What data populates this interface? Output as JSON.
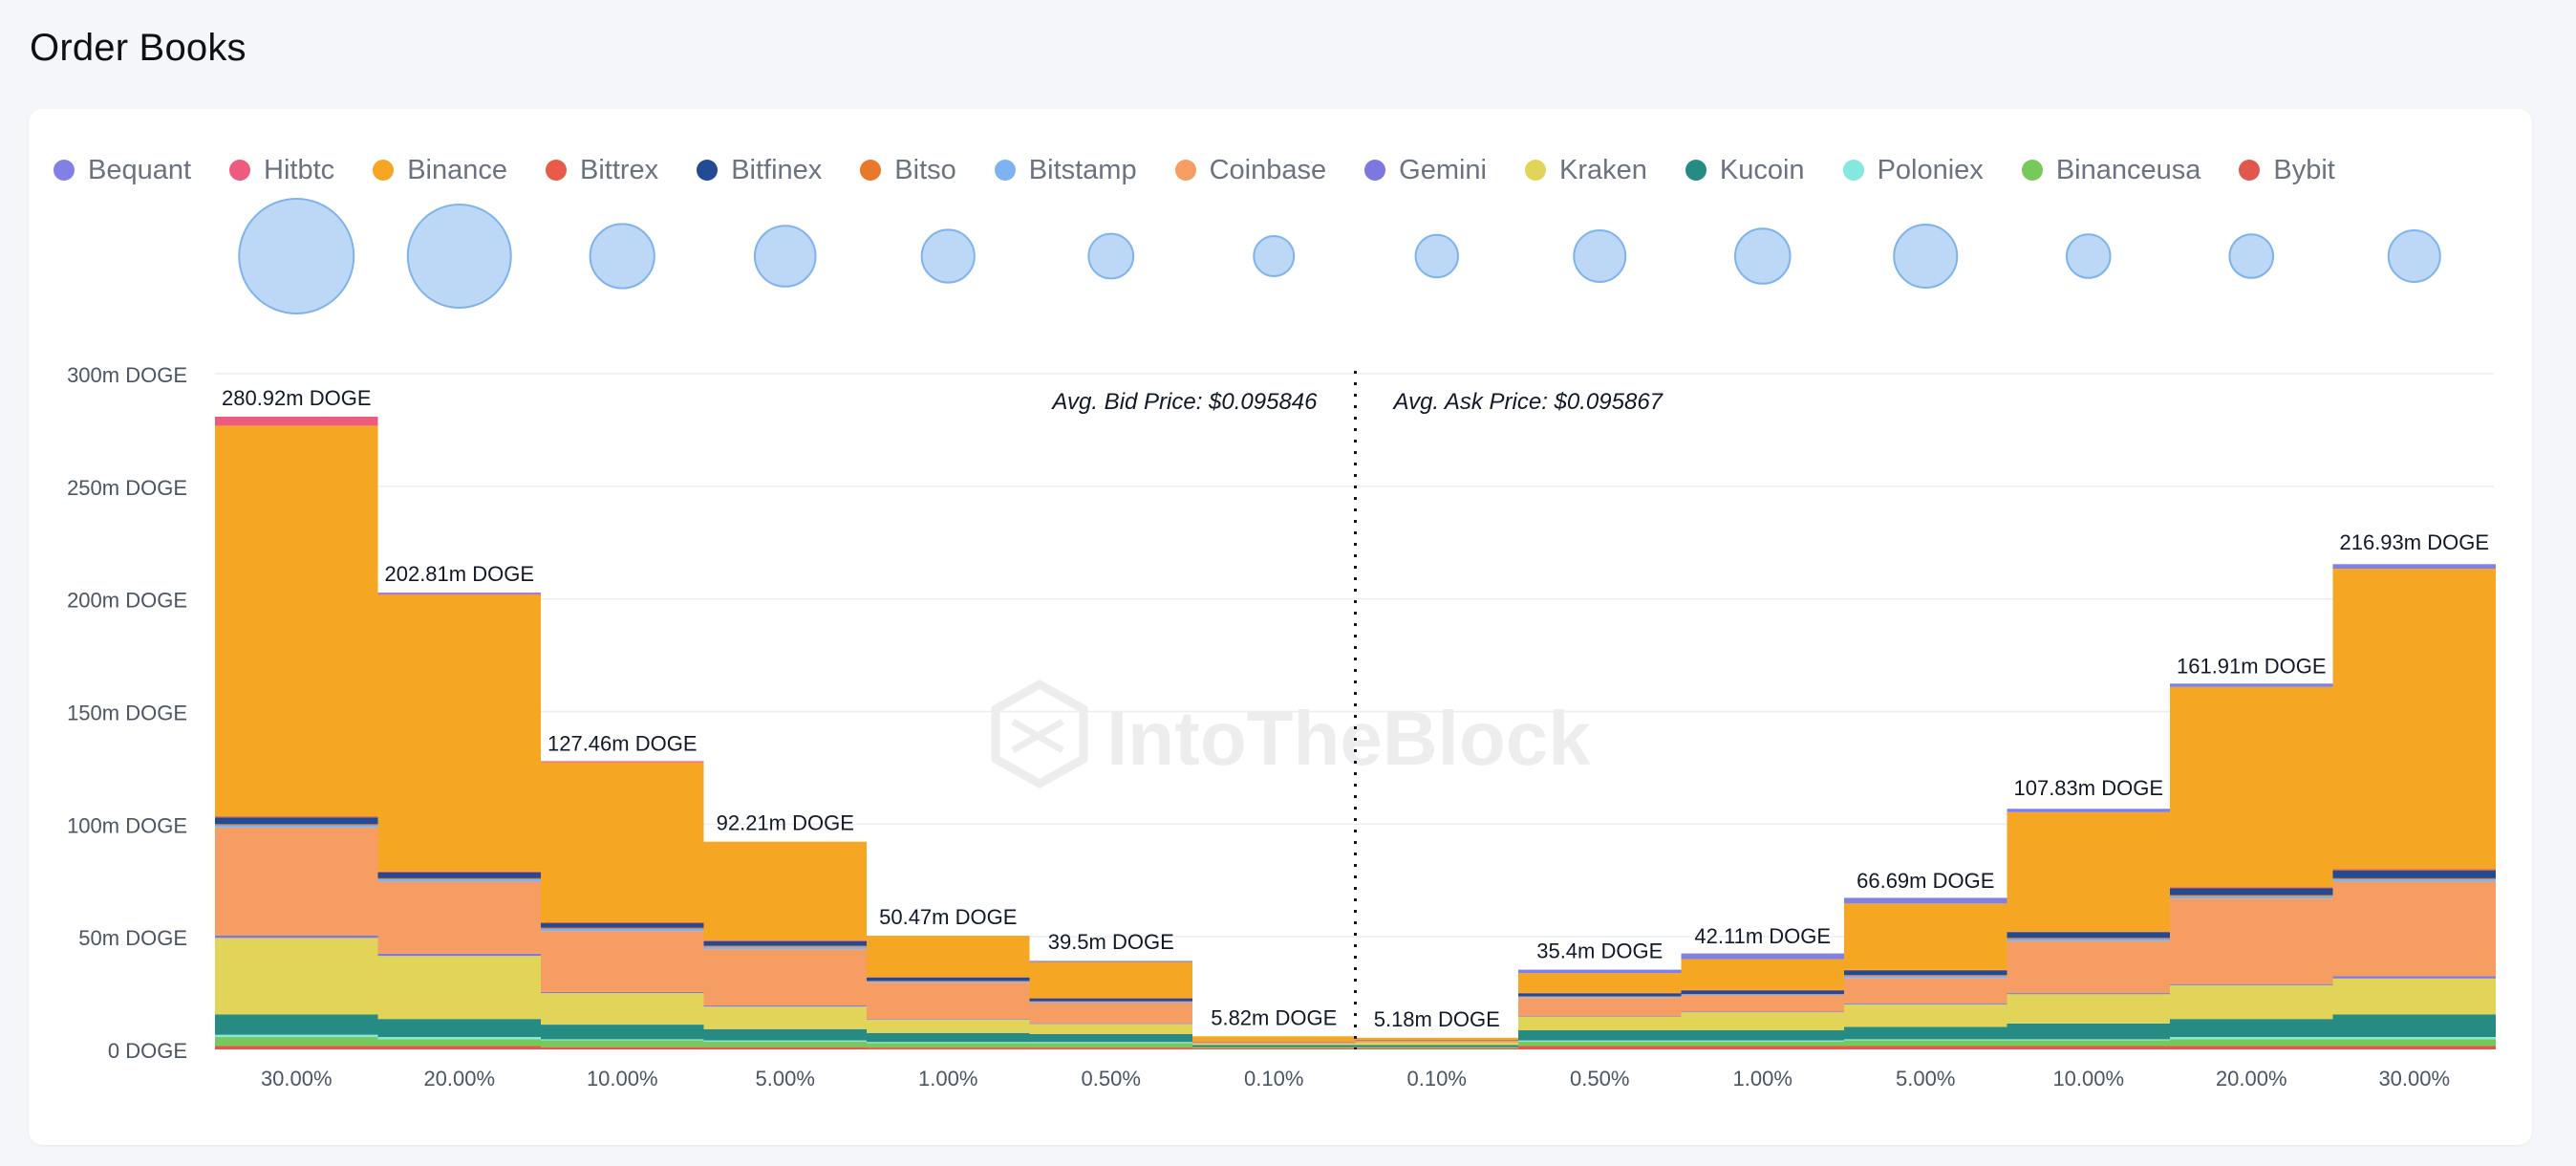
{
  "page": {
    "title": "Order Books"
  },
  "watermark": "IntoTheBlock",
  "legend": [
    {
      "name": "Bequant",
      "color": "#8080e6"
    },
    {
      "name": "Hitbtc",
      "color": "#ef5b7f"
    },
    {
      "name": "Binance",
      "color": "#f5a623"
    },
    {
      "name": "Bittrex",
      "color": "#e85b4a"
    },
    {
      "name": "Bitfinex",
      "color": "#234b94"
    },
    {
      "name": "Bitso",
      "color": "#e8782a"
    },
    {
      "name": "Bitstamp",
      "color": "#7fb3f0"
    },
    {
      "name": "Coinbase",
      "color": "#f59d62"
    },
    {
      "name": "Gemini",
      "color": "#7d78e0"
    },
    {
      "name": "Kraken",
      "color": "#e2d458"
    },
    {
      "name": "Kucoin",
      "color": "#268b83"
    },
    {
      "name": "Poloniex",
      "color": "#85e8df"
    },
    {
      "name": "Binanceusa",
      "color": "#76c95a"
    },
    {
      "name": "Bybit",
      "color": "#e0574c"
    }
  ],
  "chart_data": {
    "type": "bar",
    "stacked": true,
    "categories": [
      "30.00%",
      "20.00%",
      "10.00%",
      "5.00%",
      "1.00%",
      "0.50%",
      "0.10%",
      "0.10%",
      "0.50%",
      "1.00%",
      "5.00%",
      "10.00%",
      "20.00%",
      "30.00%"
    ],
    "side": [
      "bid",
      "bid",
      "bid",
      "bid",
      "bid",
      "bid",
      "bid",
      "ask",
      "ask",
      "ask",
      "ask",
      "ask",
      "ask",
      "ask"
    ],
    "totals": [
      280.92,
      202.81,
      127.46,
      92.21,
      50.47,
      39.5,
      5.82,
      5.18,
      35.4,
      42.11,
      66.69,
      107.83,
      161.91,
      216.93
    ],
    "total_labels": [
      "280.92m DOGE",
      "202.81m DOGE",
      "127.46m DOGE",
      "92.21m DOGE",
      "50.47m DOGE",
      "39.5m DOGE",
      "5.82m DOGE",
      "5.18m DOGE",
      "35.4m DOGE",
      "42.11m DOGE",
      "66.69m DOGE",
      "107.83m DOGE",
      "161.91m DOGE",
      "216.93m DOGE"
    ],
    "unit": "m DOGE",
    "series": [
      {
        "name": "Bybit",
        "color": "#e0574c",
        "values": [
          1.5,
          1.5,
          1.0,
          1.0,
          0.8,
          0.8,
          0.5,
          0.5,
          1.5,
          1.5,
          1.5,
          1.5,
          1.5,
          1.5
        ]
      },
      {
        "name": "Binanceusa",
        "color": "#76c95a",
        "values": [
          4,
          3,
          3,
          2.5,
          2,
          2,
          0.5,
          0.5,
          2,
          2,
          2.5,
          2.5,
          3,
          3
        ]
      },
      {
        "name": "Poloniex",
        "color": "#85e8df",
        "values": [
          1,
          1,
          0.5,
          0.5,
          0.5,
          0.5,
          0,
          0,
          0.5,
          0.5,
          0.5,
          0.5,
          1,
          1
        ]
      },
      {
        "name": "Kucoin",
        "color": "#268b83",
        "values": [
          9,
          8,
          6.5,
          5,
          4,
          3.5,
          1,
          1,
          4.5,
          4.5,
          5.5,
          7,
          8,
          10
        ]
      },
      {
        "name": "Kraken",
        "color": "#e2d458",
        "values": [
          34,
          28,
          14,
          10,
          6,
          4.5,
          0.5,
          1,
          6,
          8,
          10,
          13,
          15,
          16
        ]
      },
      {
        "name": "Gemini",
        "color": "#7d78e0",
        "values": [
          1,
          1,
          0.5,
          0.5,
          0.3,
          0.3,
          0,
          0,
          0.3,
          0.3,
          0.5,
          0.5,
          0.5,
          1
        ]
      },
      {
        "name": "Coinbase",
        "color": "#f59d62",
        "values": [
          48,
          32,
          27,
          25,
          16,
          9,
          0.8,
          0.8,
          8,
          7,
          11,
          23,
          38,
          42
        ]
      },
      {
        "name": "Bitstamp",
        "color": "#7fb3f0",
        "values": [
          1,
          1,
          1,
          1,
          0.5,
          0.5,
          0,
          0,
          0.5,
          0.5,
          1,
          1,
          1,
          1
        ]
      },
      {
        "name": "Bitso",
        "color": "#e8782a",
        "values": [
          0.5,
          0.5,
          0.5,
          0.5,
          0.3,
          0.3,
          0,
          0,
          0.3,
          0.3,
          0.5,
          0.5,
          0.5,
          0.5
        ]
      },
      {
        "name": "Bitfinex",
        "color": "#234b94",
        "values": [
          3,
          2.5,
          2,
          2,
          1.5,
          1.2,
          0.2,
          0.2,
          1.2,
          1.5,
          2,
          2.5,
          3,
          3.5
        ]
      },
      {
        "name": "Bittrex",
        "color": "#e85b4a",
        "values": [
          0.5,
          0.5,
          0.5,
          0.5,
          0.3,
          0.3,
          0,
          0,
          0.3,
          0.3,
          0.3,
          0.3,
          0.5,
          0.5
        ]
      },
      {
        "name": "Binance",
        "color": "#f5a623",
        "values": [
          173.42,
          122.81,
          70.96,
          43.71,
          18.27,
          15.9,
          2.32,
          1.18,
          8.8,
          13.71,
          29.49,
          53.03,
          88.91,
          133.43
        ]
      },
      {
        "name": "Hitbtc",
        "color": "#ef5b7f",
        "values": [
          4.0,
          0.5,
          0.5,
          0,
          0,
          0,
          0,
          0,
          0,
          0,
          0,
          0,
          0,
          0
        ]
      },
      {
        "name": "Bequant",
        "color": "#8080e6",
        "values": [
          0,
          0.5,
          0,
          0,
          0,
          0.5,
          0,
          0,
          1.5,
          2.5,
          2.5,
          1.5,
          1.5,
          2.0
        ]
      }
    ],
    "depth_bubbles": [
      1.0,
      0.9,
      0.56,
      0.53,
      0.46,
      0.39,
      0.35,
      0.37,
      0.45,
      0.48,
      0.55,
      0.38,
      0.38,
      0.45
    ],
    "yticks": [
      0,
      50,
      100,
      150,
      200,
      250,
      300
    ],
    "ytick_labels": [
      "0 DOGE",
      "50m DOGE",
      "100m DOGE",
      "150m DOGE",
      "200m DOGE",
      "250m DOGE",
      "300m DOGE"
    ],
    "ylim": [
      0,
      300
    ],
    "grid": true,
    "annotations": {
      "bid": "Avg. Bid Price: $0.095846",
      "ask": "Avg. Ask Price: $0.095867"
    }
  }
}
